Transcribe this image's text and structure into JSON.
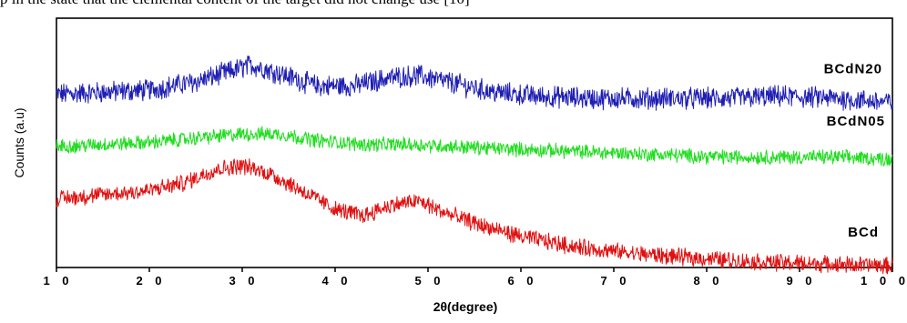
{
  "caption_fragment": "p in the state that the clemental content of the target did not change use [10]",
  "chart_data": {
    "type": "line",
    "title": "",
    "xlabel": "2θ(degree)",
    "ylabel": "Counts (a.u)",
    "xlim": [
      10,
      100
    ],
    "xticks": [
      "1 0",
      "2 0",
      "3 0",
      "4 0",
      "5 0",
      "6 0",
      "7 0",
      "8 0",
      "9 0",
      "1 0 0"
    ],
    "xtick_values": [
      10,
      20,
      30,
      40,
      50,
      60,
      70,
      80,
      90,
      100
    ],
    "grid": false,
    "legend": "inline-right",
    "series": [
      {
        "name": "BCdN20",
        "color": "#1f1fb4",
        "x": [
          10,
          15,
          20,
          25,
          28,
          31,
          34,
          38,
          42,
          46,
          49,
          53,
          57,
          62,
          68,
          75,
          82,
          88,
          94,
          100
        ],
        "y": [
          0.78,
          0.79,
          0.8,
          0.84,
          0.88,
          0.92,
          0.88,
          0.82,
          0.82,
          0.86,
          0.87,
          0.83,
          0.79,
          0.77,
          0.76,
          0.76,
          0.76,
          0.77,
          0.76,
          0.74
        ]
      },
      {
        "name": "BCdN05",
        "color": "#22dd22",
        "x": [
          10,
          15,
          20,
          25,
          30,
          34,
          38,
          43,
          48,
          53,
          58,
          64,
          70,
          76,
          82,
          88,
          94,
          100
        ],
        "y": [
          0.53,
          0.54,
          0.55,
          0.57,
          0.59,
          0.59,
          0.56,
          0.54,
          0.54,
          0.53,
          0.52,
          0.51,
          0.5,
          0.49,
          0.48,
          0.48,
          0.48,
          0.47
        ]
      },
      {
        "name": "BCd",
        "color": "#e01010",
        "x": [
          10,
          15,
          20,
          24,
          27,
          30,
          33,
          36,
          40,
          43,
          46,
          49,
          52,
          56,
          60,
          66,
          72,
          78,
          85,
          92,
          100
        ],
        "y": [
          0.28,
          0.3,
          0.32,
          0.36,
          0.42,
          0.44,
          0.4,
          0.33,
          0.23,
          0.2,
          0.25,
          0.27,
          0.21,
          0.15,
          0.1,
          0.05,
          0.02,
          0.0,
          -0.02,
          -0.03,
          -0.04
        ]
      }
    ]
  }
}
